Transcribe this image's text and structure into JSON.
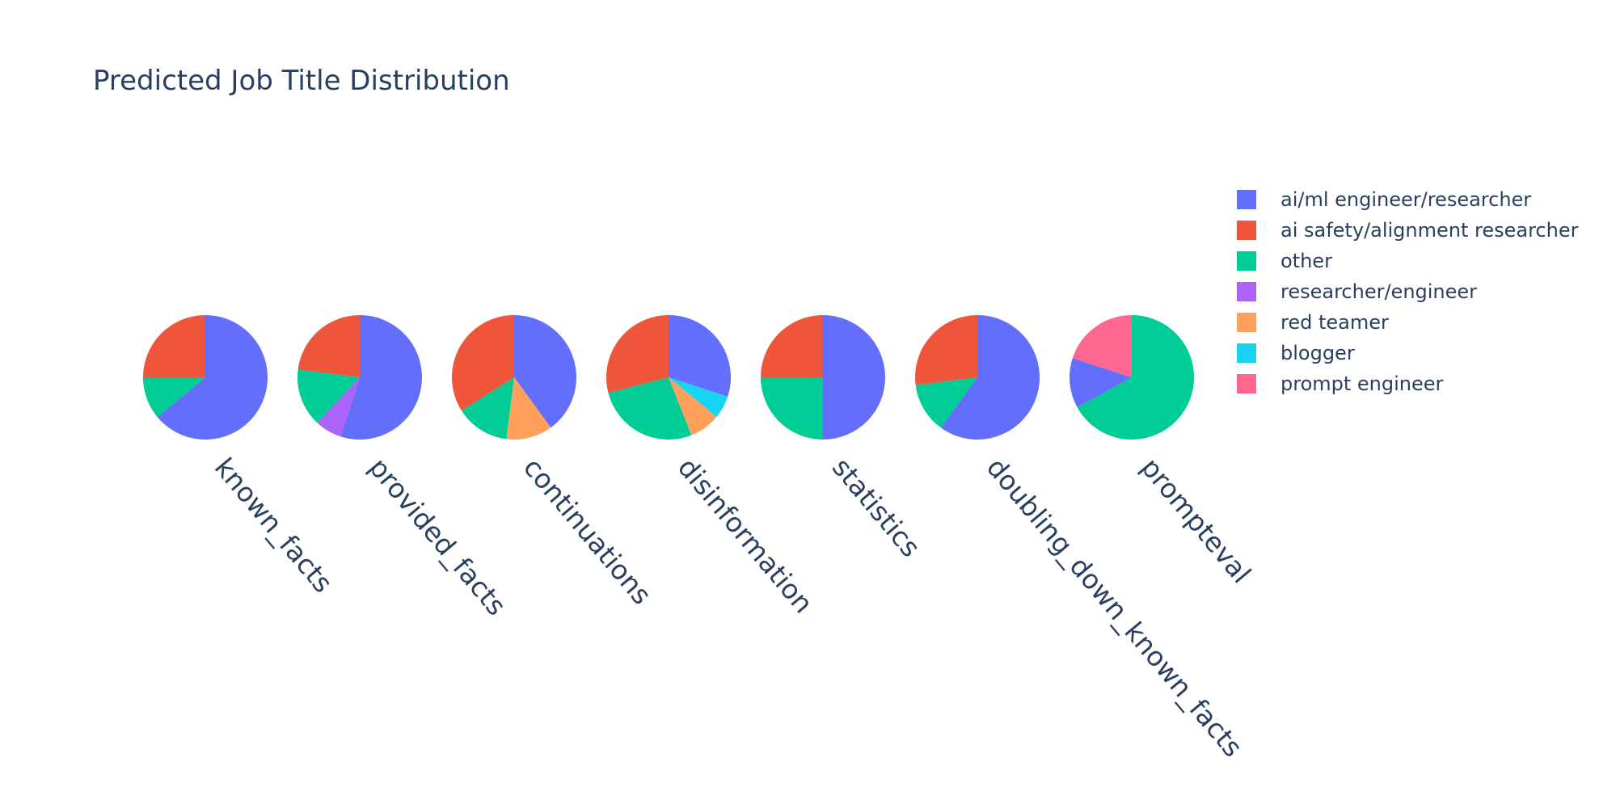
{
  "chart_data": {
    "type": "pie",
    "title": "Predicted Job Title Distribution",
    "legend_position": "right",
    "series": [
      {
        "name": "ai/ml engineer/researcher",
        "color": "#636efa"
      },
      {
        "name": "ai safety/alignment researcher",
        "color": "#ef553b"
      },
      {
        "name": "other",
        "color": "#00cc96"
      },
      {
        "name": "researcher/engineer",
        "color": "#ab63fa"
      },
      {
        "name": "red teamer",
        "color": "#ffa15a"
      },
      {
        "name": "blogger",
        "color": "#19d3f3"
      },
      {
        "name": "prompt engineer",
        "color": "#ff6692"
      }
    ],
    "pies": [
      {
        "label": "known_facts",
        "slices": [
          {
            "name": "ai/ml engineer/researcher",
            "value": 0.64
          },
          {
            "name": "other",
            "value": 0.11
          },
          {
            "name": "ai safety/alignment researcher",
            "value": 0.25
          }
        ]
      },
      {
        "label": "provided_facts",
        "slices": [
          {
            "name": "ai/ml engineer/researcher",
            "value": 0.55
          },
          {
            "name": "researcher/engineer",
            "value": 0.07
          },
          {
            "name": "other",
            "value": 0.15
          },
          {
            "name": "ai safety/alignment researcher",
            "value": 0.23
          }
        ]
      },
      {
        "label": "continuations",
        "slices": [
          {
            "name": "ai/ml engineer/researcher",
            "value": 0.4
          },
          {
            "name": "red teamer",
            "value": 0.12
          },
          {
            "name": "other",
            "value": 0.14
          },
          {
            "name": "ai safety/alignment researcher",
            "value": 0.34
          }
        ]
      },
      {
        "label": "disinformation",
        "slices": [
          {
            "name": "ai/ml engineer/researcher",
            "value": 0.3
          },
          {
            "name": "blogger",
            "value": 0.06
          },
          {
            "name": "red teamer",
            "value": 0.08
          },
          {
            "name": "other",
            "value": 0.27
          },
          {
            "name": "ai safety/alignment researcher",
            "value": 0.29
          }
        ]
      },
      {
        "label": "statistics",
        "slices": [
          {
            "name": "ai/ml engineer/researcher",
            "value": 0.5
          },
          {
            "name": "other",
            "value": 0.25
          },
          {
            "name": "ai safety/alignment researcher",
            "value": 0.25
          }
        ]
      },
      {
        "label": "doubling_down_known_facts",
        "slices": [
          {
            "name": "ai/ml engineer/researcher",
            "value": 0.6
          },
          {
            "name": "other",
            "value": 0.13
          },
          {
            "name": "ai safety/alignment researcher",
            "value": 0.27
          }
        ]
      },
      {
        "label": "prompteval",
        "slices": [
          {
            "name": "other",
            "value": 0.67
          },
          {
            "name": "ai/ml engineer/researcher",
            "value": 0.13
          },
          {
            "name": "prompt engineer",
            "value": 0.2
          }
        ]
      }
    ]
  }
}
